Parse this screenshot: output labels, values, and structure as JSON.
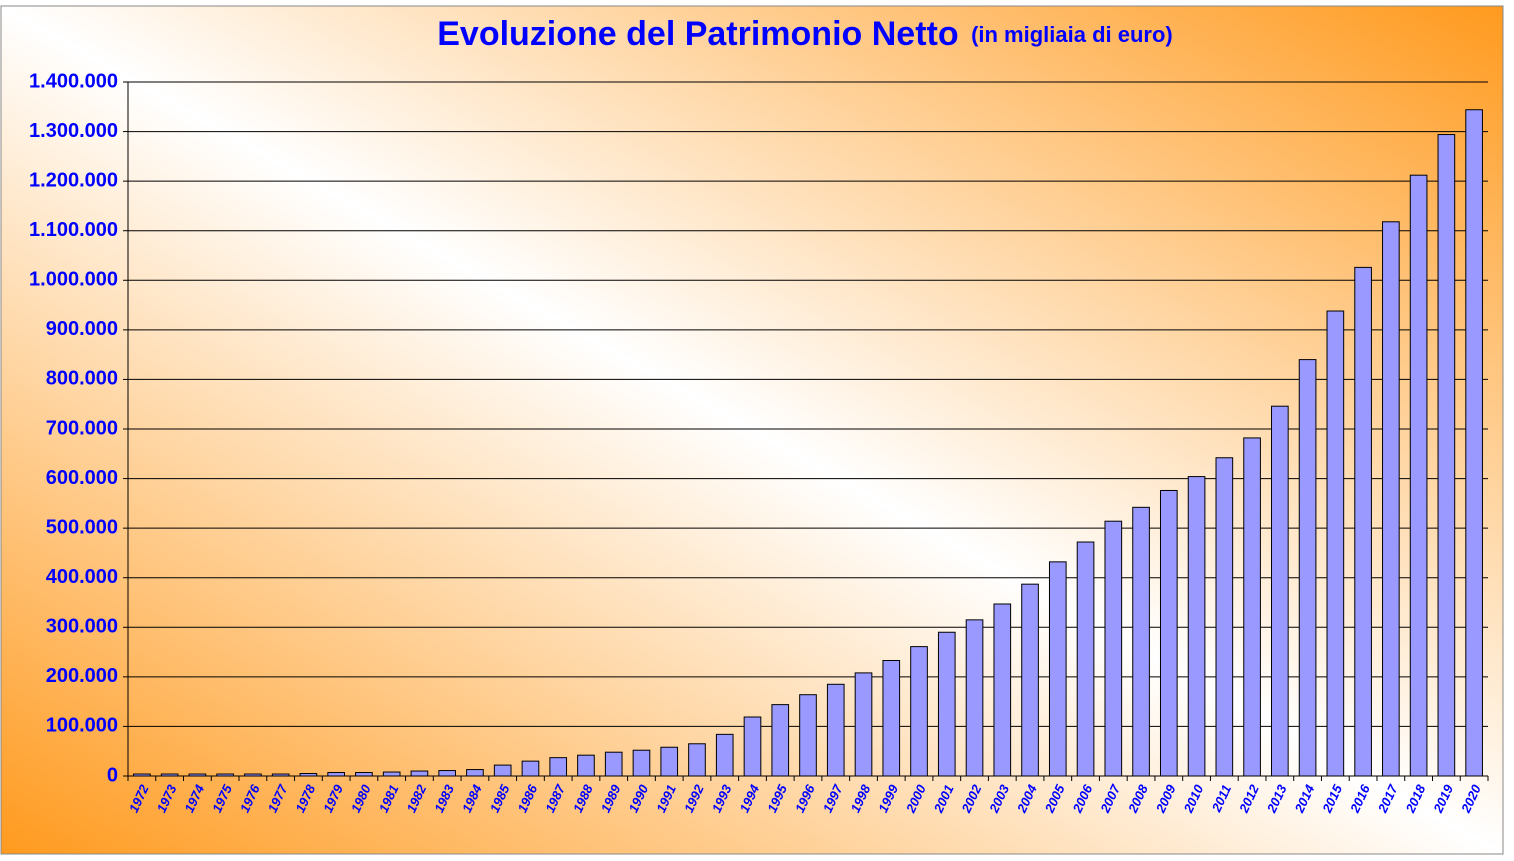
{
  "chart_data": {
    "type": "bar",
    "title": "Evoluzione del Patrimonio Netto",
    "subtitle": "(in migliaia di euro)",
    "categories": [
      "1972",
      "1973",
      "1974",
      "1975",
      "1976",
      "1977",
      "1978",
      "1979",
      "1980",
      "1981",
      "1982",
      "1983",
      "1984",
      "1985",
      "1986",
      "1987",
      "1988",
      "1989",
      "1990",
      "1991",
      "1992",
      "1993",
      "1994",
      "1995",
      "1996",
      "1997",
      "1998",
      "1999",
      "2000",
      "2001",
      "2002",
      "2003",
      "2004",
      "2005",
      "2006",
      "2007",
      "2008",
      "2009",
      "2010",
      "2011",
      "2012",
      "2013",
      "2014",
      "2015",
      "2016",
      "2017",
      "2018",
      "2019",
      "2020"
    ],
    "values": [
      4000,
      4000,
      4000,
      4000,
      4000,
      4000,
      5000,
      7000,
      7000,
      8000,
      10000,
      11000,
      13000,
      22000,
      30000,
      37000,
      42000,
      48000,
      52000,
      58000,
      65000,
      84000,
      119000,
      144000,
      164000,
      185000,
      208000,
      233000,
      261000,
      290000,
      315000,
      347000,
      387000,
      432000,
      472000,
      514000,
      542000,
      576000,
      604000,
      642000,
      682000,
      746000,
      840000,
      938000,
      1026000,
      1118000,
      1212000,
      1294000,
      1344000
    ],
    "color": "#9999ff",
    "ylim": [
      0,
      1400000
    ],
    "yticks": [
      0,
      {
        "value": 100000,
        "label": "100.000"
      },
      {
        "value": 200000,
        "label": "200.000"
      },
      {
        "value": 300000,
        "label": "300.000"
      },
      {
        "value": 400000,
        "label": "400.000"
      },
      {
        "value": 500000,
        "label": "500.000"
      },
      {
        "value": 600000,
        "label": "600.000"
      },
      {
        "value": 700000,
        "label": "700.000"
      },
      {
        "value": 800000,
        "label": "800.000"
      },
      {
        "value": 900000,
        "label": "900.000"
      },
      {
        "value": 1000000,
        "label": "1.000.000"
      },
      {
        "value": 1100000,
        "label": "1.100.000"
      },
      {
        "value": 1200000,
        "label": "1.200.000"
      },
      {
        "value": 1300000,
        "label": "1.300.000"
      },
      {
        "value": 1400000,
        "label": "1.400.000"
      }
    ],
    "grid": true
  }
}
